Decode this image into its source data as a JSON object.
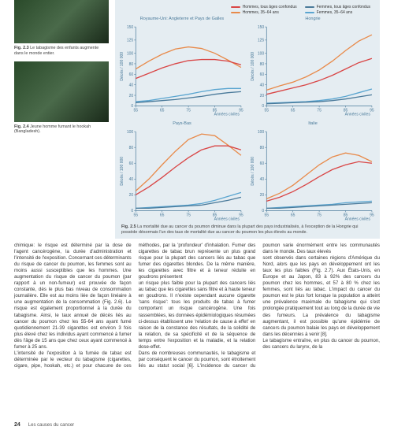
{
  "fig23_caption_prefix": "Fig. 2.3",
  "fig23_caption": "Le tabagisme des enfants augmente dans le monde entier.",
  "fig24_caption_prefix": "Fig. 2.4",
  "fig24_caption": "Jeune homme fumant le hookah (Bangladesh).",
  "fig25_caption_prefix": "Fig. 2.5",
  "fig25_caption": "La mortalité due au cancer du poumon diminue dans la plupart des pays industrialisés, à l'exception de la Hongrie qui possède désormais l'un des taux de mortalité due au cancer du poumon les plus élevés au monde.",
  "legend": {
    "items": [
      {
        "label": "Hommes, tous âges confondus",
        "color": "#d94545"
      },
      {
        "label": "Hommes, 35–64 ans",
        "color": "#e88a4a"
      },
      {
        "label": "Femmes, tous âges confondus",
        "color": "#4a7a9a"
      },
      {
        "label": "Femmes, 35–64 ans",
        "color": "#5aa5d0"
      }
    ]
  },
  "charts": {
    "ylabel": "Décès / 100 000",
    "xlabel": "Années civiles",
    "xticks": [
      55,
      65,
      75,
      85,
      95
    ],
    "yticks": [
      0,
      20,
      40,
      60,
      80,
      100,
      125,
      150
    ],
    "panels": [
      {
        "title": "Royaume-Uni: Angleterre et Pays de Galles",
        "ylim": [
          0,
          150
        ],
        "series": [
          {
            "color": "#e88a4a",
            "values": [
              [
                55,
                70
              ],
              [
                60,
                85
              ],
              [
                65,
                98
              ],
              [
                70,
                108
              ],
              [
                75,
                112
              ],
              [
                80,
                109
              ],
              [
                85,
                100
              ],
              [
                90,
                87
              ],
              [
                95,
                73
              ]
            ]
          },
          {
            "color": "#d94545",
            "values": [
              [
                55,
                52
              ],
              [
                60,
                62
              ],
              [
                65,
                72
              ],
              [
                70,
                80
              ],
              [
                75,
                86
              ],
              [
                80,
                88
              ],
              [
                85,
                88
              ],
              [
                90,
                85
              ],
              [
                95,
                78
              ]
            ]
          },
          {
            "color": "#5aa5d0",
            "values": [
              [
                55,
                8
              ],
              [
                60,
                10
              ],
              [
                65,
                14
              ],
              [
                70,
                18
              ],
              [
                75,
                22
              ],
              [
                80,
                27
              ],
              [
                85,
                31
              ],
              [
                90,
                33
              ],
              [
                95,
                33
              ]
            ]
          },
          {
            "color": "#4a7a9a",
            "values": [
              [
                55,
                6
              ],
              [
                60,
                8
              ],
              [
                65,
                10
              ],
              [
                70,
                12
              ],
              [
                75,
                15
              ],
              [
                80,
                18
              ],
              [
                85,
                22
              ],
              [
                90,
                25
              ],
              [
                95,
                27
              ]
            ]
          }
        ]
      },
      {
        "title": "Hongrie",
        "ylim": [
          0,
          150
        ],
        "series": [
          {
            "color": "#e88a4a",
            "values": [
              [
                55,
                30
              ],
              [
                60,
                38
              ],
              [
                65,
                45
              ],
              [
                70,
                55
              ],
              [
                75,
                68
              ],
              [
                80,
                85
              ],
              [
                85,
                105
              ],
              [
                90,
                123
              ],
              [
                95,
                135
              ]
            ]
          },
          {
            "color": "#d94545",
            "values": [
              [
                55,
                22
              ],
              [
                60,
                28
              ],
              [
                65,
                34
              ],
              [
                70,
                40
              ],
              [
                75,
                48
              ],
              [
                80,
                58
              ],
              [
                85,
                70
              ],
              [
                90,
                82
              ],
              [
                95,
                90
              ]
            ]
          },
          {
            "color": "#5aa5d0",
            "values": [
              [
                55,
                5
              ],
              [
                60,
                6
              ],
              [
                65,
                7
              ],
              [
                70,
                8
              ],
              [
                75,
                10
              ],
              [
                80,
                13
              ],
              [
                85,
                18
              ],
              [
                90,
                25
              ],
              [
                95,
                32
              ]
            ]
          },
          {
            "color": "#4a7a9a",
            "values": [
              [
                55,
                4
              ],
              [
                60,
                5
              ],
              [
                65,
                6
              ],
              [
                70,
                7
              ],
              [
                75,
                8
              ],
              [
                80,
                10
              ],
              [
                85,
                13
              ],
              [
                90,
                17
              ],
              [
                95,
                21
              ]
            ]
          }
        ]
      },
      {
        "title": "Pays-Bas",
        "ylim": [
          0,
          100
        ],
        "series": [
          {
            "color": "#e88a4a",
            "values": [
              [
                55,
                25
              ],
              [
                60,
                40
              ],
              [
                65,
                58
              ],
              [
                70,
                75
              ],
              [
                75,
                90
              ],
              [
                80,
                97
              ],
              [
                85,
                95
              ],
              [
                90,
                83
              ],
              [
                95,
                70
              ]
            ]
          },
          {
            "color": "#d94545",
            "values": [
              [
                55,
                20
              ],
              [
                60,
                30
              ],
              [
                65,
                42
              ],
              [
                70,
                55
              ],
              [
                75,
                67
              ],
              [
                80,
                77
              ],
              [
                85,
                82
              ],
              [
                90,
                82
              ],
              [
                95,
                77
              ]
            ]
          },
          {
            "color": "#5aa5d0",
            "values": [
              [
                55,
                3
              ],
              [
                60,
                4
              ],
              [
                65,
                5
              ],
              [
                70,
                6
              ],
              [
                75,
                7
              ],
              [
                80,
                9
              ],
              [
                85,
                13
              ],
              [
                90,
                18
              ],
              [
                95,
                23
              ]
            ]
          },
          {
            "color": "#4a7a9a",
            "values": [
              [
                55,
                3
              ],
              [
                60,
                3
              ],
              [
                65,
                4
              ],
              [
                70,
                5
              ],
              [
                75,
                6
              ],
              [
                80,
                7
              ],
              [
                85,
                10
              ],
              [
                90,
                13
              ],
              [
                95,
                17
              ]
            ]
          }
        ]
      },
      {
        "title": "Italie",
        "ylim": [
          0,
          100
        ],
        "series": [
          {
            "color": "#e88a4a",
            "values": [
              [
                55,
                15
              ],
              [
                60,
                22
              ],
              [
                65,
                32
              ],
              [
                70,
                45
              ],
              [
                75,
                58
              ],
              [
                80,
                68
              ],
              [
                85,
                73
              ],
              [
                90,
                70
              ],
              [
                95,
                62
              ]
            ]
          },
          {
            "color": "#d94545",
            "values": [
              [
                55,
                12
              ],
              [
                60,
                17
              ],
              [
                65,
                24
              ],
              [
                70,
                33
              ],
              [
                75,
                43
              ],
              [
                80,
                52
              ],
              [
                85,
                58
              ],
              [
                90,
                62
              ],
              [
                95,
                60
              ]
            ]
          },
          {
            "color": "#5aa5d0",
            "values": [
              [
                55,
                3
              ],
              [
                60,
                4
              ],
              [
                65,
                5
              ],
              [
                70,
                6
              ],
              [
                75,
                7
              ],
              [
                80,
                8
              ],
              [
                85,
                10
              ],
              [
                90,
                11
              ],
              [
                95,
                12
              ]
            ]
          },
          {
            "color": "#4a7a9a",
            "values": [
              [
                55,
                3
              ],
              [
                60,
                3
              ],
              [
                65,
                4
              ],
              [
                70,
                5
              ],
              [
                75,
                6
              ],
              [
                80,
                7
              ],
              [
                85,
                8
              ],
              [
                90,
                9
              ],
              [
                95,
                10
              ]
            ]
          }
        ]
      }
    ]
  },
  "body1": "chimique: le risque est déterminé par la dose de l'agent cancérogène, la durée d'administration et l'intensité de l'exposition. Concernant ces déterminants du risque de cancer du poumon, les femmes sont au moins aussi susceptibles que les hommes. Une augmentation du risque de cancer du poumon (par rapport à un non-fumeur) est prouvée de façon constante, dès le plus bas niveau de consommation journalière. Elle est au moins liée de façon linéaire à une augmentation de la consommation (Fig. 2.6). Le risque est également proportionnel à la durée du tabagisme. Ainsi, le taux annuel de décès liés au cancer du poumon chez les 55-64 ans ayant fumé quotidiennement 21-39 cigarettes est environ 3 fois plus élevé chez les individus ayant commencé à fumer dès l'âge de 15 ans que chez ceux ayant commencé à fumer à 25 ans.",
  "body2": "L'intensité de l'exposition à la fumée de tabac est déterminée par le vecteur du tabagisme (cigarettes, cigare, pipe, hookah, etc.) et pour chacune de ces méthodes, par la 'profondeur' d'inhalation. Fumer des cigarettes de tabac brun représente un plus grand risque pour la plupart des cancers liés au tabac que fumer des cigarettes blondes. De la même manière, les cigarettes avec filtre et à teneur réduite en goudrons présentent",
  "body3": "un risque plus faible pour la plupart des cancers liés au tabac que les cigarettes sans filtre et à haute teneur en goudrons. Il n'existe cependant aucune cigarette 'sans risque': tous les produits de tabac à fumer comportent un risque cancérogène. Une fois rassemblées, les données épidémiologiques résumées ci-dessus établissent une 'relation de cause à effet' en raison de la constance des résultats, de la solidité de la relation, de sa spécificité et de la séquence de temps entre l'exposition et la maladie, et la relation dose-effet.",
  "body4": "Dans de nombreuses communautés, le tabagisme et par conséquent le cancer du poumon, sont étroitement liés au statut social [6]. L'incidence du cancer du poumon varie énormément entre les communautés dans le monde. Des taux élevés",
  "body5": "sont observés dans certaines régions d'Amérique du Nord, alors que les pays en développement ont les taux les plus faibles (Fig. 2.7). Aux États-Unis, en Europe et au Japon, 83 à 92% des cancers du poumon chez les hommes, et 57 à 80 % chez les femmes, sont liés au tabac. L'impact du cancer du poumon est le plus fort lorsque la population a atteint une prévalence maximale du tabagisme qui s'est prolongée pratiquement tout au long de la durée de vie des fumeurs. La prévalence du tabagisme augmentant, il est possible qu'une épidémie de cancers du poumon balaie les pays en développement dans les décennies à venir [8].",
  "body6": "Le tabagisme entraîne, en plus du cancer du poumon, des cancers du larynx, de la",
  "pagenum": "24",
  "footer_text": "Les causes du cancer"
}
